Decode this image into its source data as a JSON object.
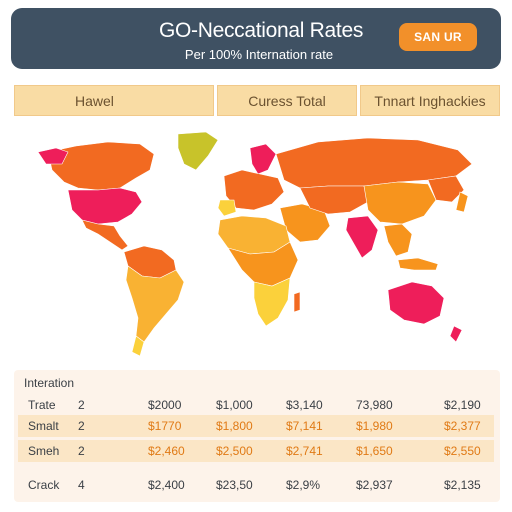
{
  "header": {
    "title": "GO-Neccational Rates",
    "subtitle": "Per 100% Internation rate",
    "button_label": "SAN UR"
  },
  "tabs": [
    {
      "label": "Hawel"
    },
    {
      "label": "Curess Total"
    },
    {
      "label": "Tnnart Inghackies"
    }
  ],
  "map": {
    "colors": {
      "red": "#ee1e5a",
      "deep_orange": "#f26a21",
      "orange": "#f7941d",
      "amber": "#f9b233",
      "yellow": "#fbd13b",
      "olive": "#c8c32a",
      "ocean": "#ffffff"
    }
  },
  "table": {
    "caption": "Interation",
    "rows": [
      {
        "label": "Trate",
        "num": "2",
        "c1": "$2000",
        "c2": "$1,000",
        "c3": "$3,140",
        "c4": "73,980",
        "c5": "$2,190",
        "style": "plain"
      },
      {
        "label": "Smalt",
        "num": "2",
        "c1": "$1770",
        "c2": "$1,800",
        "c3": "$7,141",
        "c4": "$1,980",
        "c5": "$2,377",
        "style": "alt"
      },
      {
        "label": "Smeh",
        "num": "2",
        "c1": "$2,460",
        "c2": "$2,500",
        "c3": "$2,741",
        "c4": "$1,650",
        "c5": "$2,550",
        "style": "alt"
      },
      {
        "label": "Crack",
        "num": "4",
        "c1": "$2,400",
        "c2": "$23,50",
        "c3": "$2,9%",
        "c4": "$2,937",
        "c5": "$2,135",
        "style": "plain"
      }
    ]
  }
}
